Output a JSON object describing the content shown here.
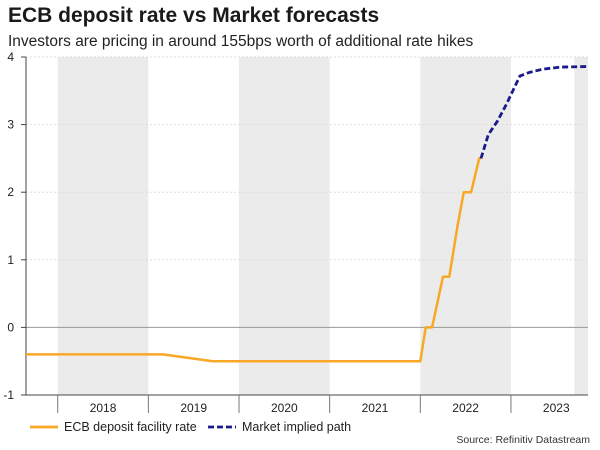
{
  "title": "ECB deposit rate vs Market forecasts",
  "subtitle": "Investors are pricing in around 155bps worth of additional rate hikes",
  "source": "Source: Refinitiv Datastream",
  "colors": {
    "ecb": "#F9A825",
    "market": "#1A1A8C",
    "band": "#EBEBEB",
    "zero_line": "#999999"
  },
  "chart_data": {
    "type": "line",
    "title": "ECB deposit rate vs Market forecasts",
    "xlabel": "",
    "ylabel": "",
    "xlim": [
      2017.65,
      2023.85
    ],
    "ylim": [
      -1,
      4
    ],
    "y_ticks": [
      -1,
      0,
      1,
      2,
      3,
      4
    ],
    "x_tick_labels": [
      "2018",
      "2019",
      "2020",
      "2021",
      "2022",
      "2023"
    ],
    "shaded_years": [
      2018,
      2020,
      2022
    ],
    "shaded_extra": [
      [
        2023.7,
        2023.85
      ]
    ],
    "legend_position": "bottom-left",
    "series": [
      {
        "name": "ECB deposit facility rate",
        "style": "solid",
        "x": [
          2017.65,
          2019.16,
          2019.71,
          2022.0,
          2022.06,
          2022.13,
          2022.25,
          2022.32,
          2022.41,
          2022.48,
          2022.56,
          2022.65,
          2022.67
        ],
        "y": [
          -0.4,
          -0.4,
          -0.5,
          -0.5,
          0.0,
          0.0,
          0.75,
          0.75,
          1.5,
          2.0,
          2.0,
          2.5,
          2.5
        ]
      },
      {
        "name": "Market implied path",
        "style": "dashed",
        "x": [
          2022.67,
          2022.75,
          2022.85,
          2022.95,
          2023.02,
          2023.1,
          2023.2,
          2023.35,
          2023.55,
          2023.85
        ],
        "y": [
          2.5,
          2.85,
          3.05,
          3.3,
          3.5,
          3.72,
          3.77,
          3.82,
          3.85,
          3.86
        ]
      }
    ]
  }
}
